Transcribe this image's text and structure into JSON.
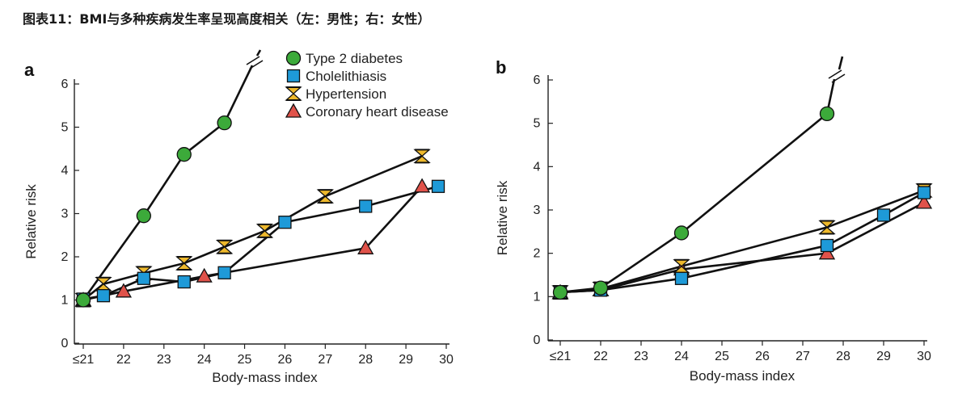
{
  "figure_title": "图表11：BMI与多种疾病发生率呈现高度相关（左：男性；右：女性）",
  "marker_colors": {
    "diabetes": "#3caa3a",
    "cholelithiasis": "#1e9ad8",
    "hypertension": "#eeb92c",
    "coronary": "#e0524a",
    "outline": "#111111"
  },
  "chart_data": [
    {
      "type": "line",
      "panel": "a",
      "xlabel": "Body-mass index",
      "ylabel": "Relative risk",
      "xlim": [
        21,
        30
      ],
      "ylim": [
        0,
        6
      ],
      "x_ticks": [
        "≤21",
        "22",
        "23",
        "24",
        "25",
        "26",
        "27",
        "28",
        "29",
        "30"
      ],
      "y_ticks": [
        "0",
        "1",
        "2",
        "3",
        "4",
        "5",
        "6"
      ],
      "legend_placement": "top-right",
      "axis_break": true,
      "series": [
        {
          "name": "Type 2 diabetes",
          "marker": "circle",
          "x": [
            21,
            22.5,
            23.5,
            24.5
          ],
          "y": [
            1.0,
            2.95,
            4.37,
            5.1
          ]
        },
        {
          "name": "Cholelithiasis",
          "marker": "square",
          "x": [
            21,
            21.5,
            22.5,
            23.5,
            24.5,
            26,
            28,
            29.8
          ],
          "y": [
            1.02,
            1.1,
            1.5,
            1.42,
            1.63,
            2.8,
            3.17,
            3.63
          ]
        },
        {
          "name": "Hypertension",
          "marker": "hourglass",
          "x": [
            21,
            21.5,
            22.5,
            23.5,
            24.5,
            25.5,
            27,
            29.4
          ],
          "y": [
            1.0,
            1.37,
            1.62,
            1.85,
            2.23,
            2.6,
            3.4,
            4.33
          ]
        },
        {
          "name": "Coronary heart disease",
          "marker": "triangle",
          "x": [
            21,
            22,
            24,
            28,
            29.4
          ],
          "y": [
            1.0,
            1.2,
            1.55,
            2.2,
            3.63
          ]
        }
      ]
    },
    {
      "type": "line",
      "panel": "b",
      "xlabel": "Body-mass index",
      "ylabel": "Relative risk",
      "xlim": [
        21,
        30
      ],
      "ylim": [
        0,
        6
      ],
      "x_ticks": [
        "≤21",
        "22",
        "23",
        "24",
        "25",
        "26",
        "27",
        "28",
        "29",
        "30"
      ],
      "y_ticks": [
        "0",
        "1",
        "2",
        "3",
        "4",
        "5",
        "6"
      ],
      "axis_break": true,
      "series": [
        {
          "name": "Type 2 diabetes",
          "marker": "circle",
          "x": [
            21,
            22,
            24,
            27.6
          ],
          "y": [
            1.1,
            1.2,
            2.47,
            5.22
          ]
        },
        {
          "name": "Cholelithiasis",
          "marker": "square",
          "x": [
            21,
            22,
            24,
            27.6,
            29,
            30
          ],
          "y": [
            1.1,
            1.15,
            1.42,
            2.18,
            2.88,
            3.4
          ]
        },
        {
          "name": "Hypertension",
          "marker": "hourglass",
          "x": [
            21,
            22,
            24,
            27.6,
            30
          ],
          "y": [
            1.1,
            1.18,
            1.7,
            2.6,
            3.45
          ]
        },
        {
          "name": "Coronary heart disease",
          "marker": "triangle",
          "x": [
            21,
            22,
            24,
            27.6,
            30
          ],
          "y": [
            1.1,
            1.15,
            1.63,
            2.0,
            3.17
          ]
        }
      ]
    }
  ]
}
